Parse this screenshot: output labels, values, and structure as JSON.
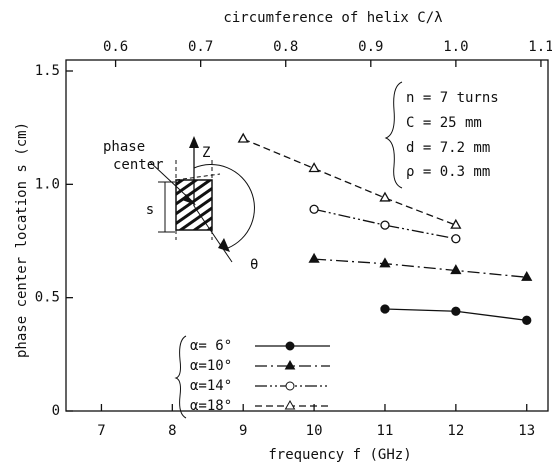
{
  "chart_data": {
    "type": "line",
    "xlabel": "frequency f (GHz)",
    "ylabel": "phase center location s (cm)",
    "x2label": "circumference of helix C/λ",
    "x": [
      9,
      10,
      11,
      12,
      13
    ],
    "series": [
      {
        "name": "α= 6°",
        "color": "#111111",
        "marker": "circle-filled",
        "linestyle": "solid",
        "values": [
          null,
          null,
          0.45,
          0.44,
          0.4
        ]
      },
      {
        "name": "α=10°",
        "color": "#111111",
        "marker": "triangle-filled",
        "linestyle": "dash-dot",
        "values": [
          null,
          0.67,
          0.65,
          0.62,
          0.59
        ]
      },
      {
        "name": "α=14°",
        "color": "#111111",
        "marker": "circle-open",
        "linestyle": "dash-dot-dot",
        "values": [
          null,
          0.89,
          0.82,
          0.76,
          null
        ]
      },
      {
        "name": "α=18°",
        "color": "#111111",
        "marker": "triangle-open",
        "linestyle": "dashed",
        "values": [
          1.2,
          1.07,
          0.94,
          0.82,
          null
        ]
      }
    ],
    "xlim": [
      6.5,
      13.3
    ],
    "xticks": [
      7,
      8,
      9,
      10,
      11,
      12,
      13
    ],
    "x2lim": [
      0.5417,
      1.1083
    ],
    "x2ticks": [
      0.6,
      0.7,
      0.8,
      0.9,
      {
        "value": 1,
        "label": "1.0"
      },
      1.1
    ],
    "ylim": [
      0,
      1.5
    ],
    "yticks": [
      0,
      0.5,
      {
        "value": 1,
        "label": "1.0"
      },
      1.5
    ],
    "annotations": [
      "n = 7 turns",
      "C = 25 mm",
      "d = 7.2 mm",
      "ρ = 0.3 mm"
    ],
    "inset_labels": [
      "Z",
      "phase",
      "center",
      "s",
      "θ"
    ],
    "legend": "lower-left"
  }
}
